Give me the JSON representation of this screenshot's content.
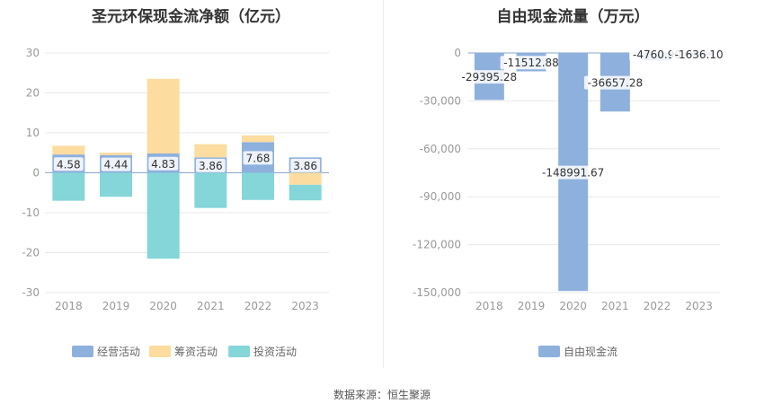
{
  "source_label": "数据来源：恒生聚源",
  "colors": {
    "operating": "#8eb0dd",
    "financing": "#fddca0",
    "investing": "#85d6d8",
    "fcf": "#8eb0dd",
    "grid": "#e8e8e8",
    "axis_text": "#999999"
  },
  "chart_data": [
    {
      "type": "bar",
      "stacked": true,
      "title": "圣元环保现金流净额（亿元）",
      "categories": [
        "2018",
        "2019",
        "2020",
        "2021",
        "2022",
        "2023"
      ],
      "ylim": [
        -30,
        30
      ],
      "yticks": [
        30,
        20,
        10,
        0,
        -10,
        -20,
        -30
      ],
      "grid": true,
      "legend_position": "bottom",
      "series": [
        {
          "name": "经营活动",
          "values": [
            4.58,
            4.44,
            4.83,
            3.86,
            7.68,
            3.86
          ],
          "labels": [
            "4.58",
            "4.44",
            "4.83",
            "3.86",
            "7.68",
            "3.86"
          ]
        },
        {
          "name": "筹资活动",
          "values": [
            2.2,
            0.6,
            18.7,
            3.3,
            1.7,
            -3.0
          ]
        },
        {
          "name": "投资活动",
          "values": [
            -7.0,
            -6.0,
            -21.5,
            -8.8,
            -6.8,
            -3.9
          ]
        }
      ]
    },
    {
      "type": "bar",
      "title": "自由现金流量（万元）",
      "categories": [
        "2018",
        "2019",
        "2020",
        "2021",
        "2022",
        "2023"
      ],
      "ylim": [
        -150000,
        0
      ],
      "yticks": [
        0,
        -30000,
        -60000,
        -90000,
        -120000,
        -150000
      ],
      "ytick_labels": [
        "0",
        "-30,000",
        "-60,000",
        "-90,000",
        "-120,000",
        "-150,000"
      ],
      "grid": true,
      "legend_position": "bottom",
      "series": [
        {
          "name": "自由现金流",
          "values": [
            -29395.28,
            -11512.88,
            -148991.67,
            -36657.28,
            -4760.9,
            -1636.1
          ],
          "labels": [
            "-29395.28",
            "-11512.88",
            "-148991.67",
            "-36657.28",
            "-4760.90",
            "-1636.10"
          ]
        }
      ]
    }
  ]
}
